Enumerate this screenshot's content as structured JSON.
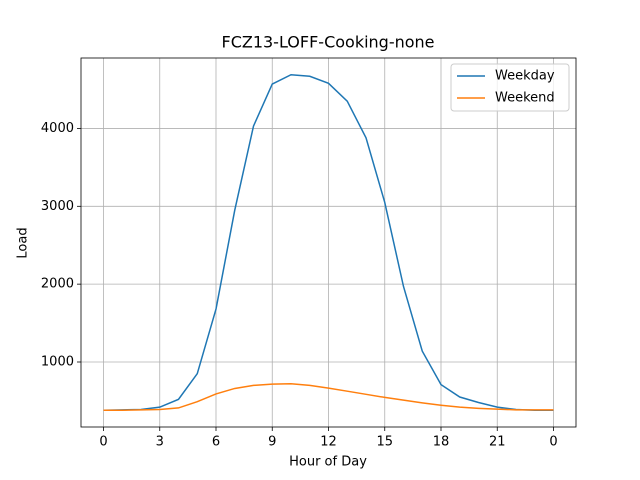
{
  "chart_data": {
    "type": "line",
    "title": "FCZ13-LOFF-Cooking-none",
    "x_label": "Hour of Day",
    "y_label": "Load",
    "x": [
      0,
      1,
      2,
      3,
      4,
      5,
      6,
      7,
      8,
      9,
      10,
      11,
      12,
      13,
      14,
      15,
      16,
      17,
      18,
      19,
      20,
      21,
      22,
      23,
      24
    ],
    "series": [
      {
        "name": "Weekday",
        "color": "#1f77b4",
        "values": [
          380,
          385,
          390,
          420,
          520,
          850,
          1680,
          2950,
          4030,
          4570,
          4690,
          4670,
          4580,
          4350,
          3880,
          3050,
          1970,
          1140,
          710,
          550,
          480,
          420,
          390,
          380,
          380
        ]
      },
      {
        "name": "Weekend",
        "color": "#ff7f0e",
        "values": [
          380,
          380,
          385,
          390,
          410,
          490,
          590,
          660,
          700,
          715,
          720,
          700,
          665,
          625,
          585,
          545,
          510,
          475,
          445,
          420,
          405,
          395,
          385,
          385,
          385
        ]
      }
    ],
    "xlim": [
      -1.2,
      25.2
    ],
    "xticks": [
      0,
      3,
      6,
      9,
      12,
      15,
      18,
      21,
      {
        "value": 24,
        "label": "0"
      }
    ],
    "ylim": [
      165,
      4905
    ],
    "yticks": [
      1000,
      2000,
      3000,
      4000
    ],
    "grid": true,
    "legend": "upper right"
  }
}
